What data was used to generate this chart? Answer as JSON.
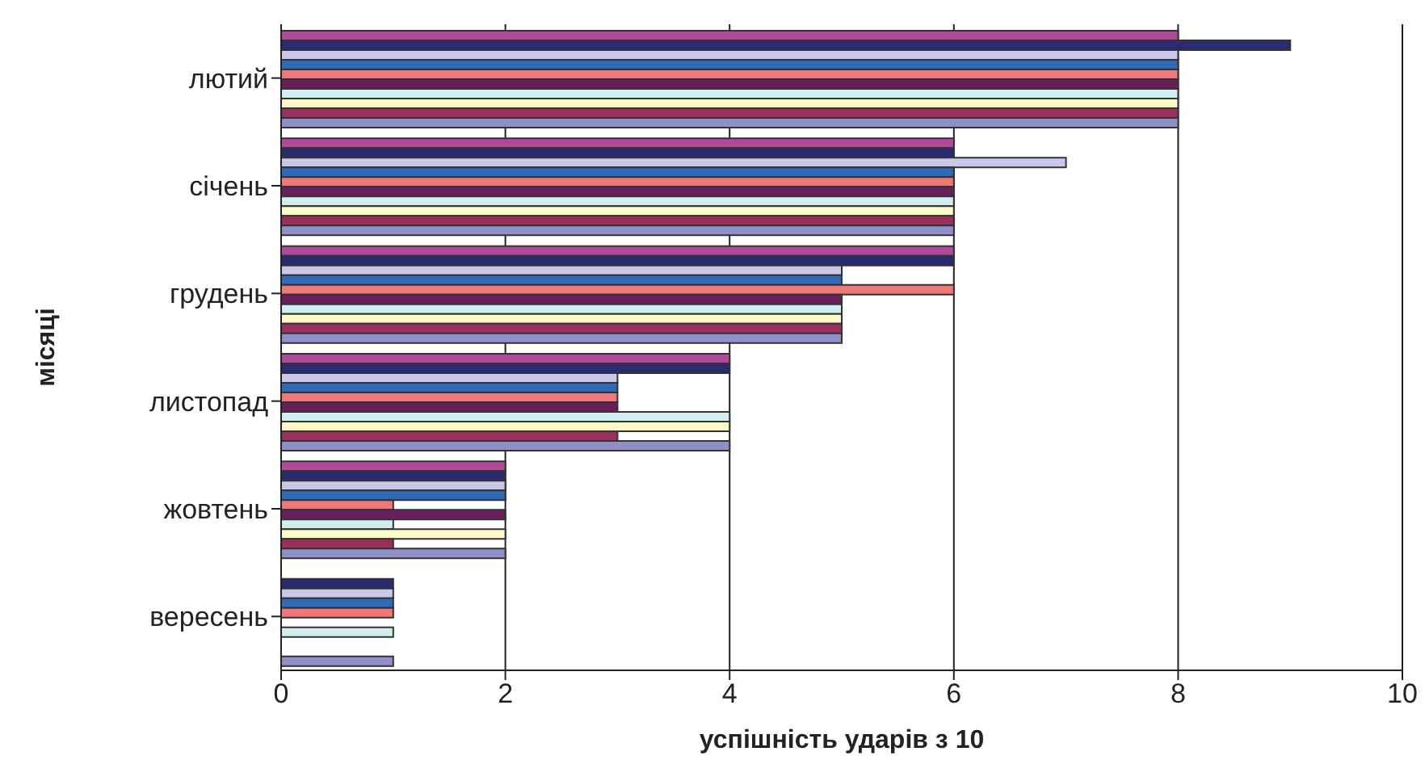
{
  "chart_data": {
    "type": "bar",
    "orientation": "horizontal",
    "xlabel": "успішність ударів з 10",
    "ylabel": "місяці",
    "categories": [
      "лютий",
      "січень",
      "грудень",
      "листопад",
      "жовтень",
      "вересень"
    ],
    "series": [
      {
        "color": "#b04a9a",
        "values": [
          8,
          6,
          6,
          4,
          2,
          0
        ]
      },
      {
        "color": "#2a2a70",
        "values": [
          9,
          6,
          6,
          4,
          2,
          1
        ]
      },
      {
        "color": "#c8c8e8",
        "values": [
          8,
          7,
          5,
          3,
          2,
          1
        ]
      },
      {
        "color": "#2e6ab8",
        "values": [
          8,
          6,
          5,
          3,
          2,
          1
        ]
      },
      {
        "color": "#f07878",
        "values": [
          8,
          6,
          6,
          3,
          1,
          1
        ]
      },
      {
        "color": "#6a1e5e",
        "values": [
          8,
          6,
          5,
          3,
          2,
          0
        ]
      },
      {
        "color": "#d0eef0",
        "values": [
          8,
          6,
          5,
          4,
          1,
          1
        ]
      },
      {
        "color": "#fff8c8",
        "values": [
          8,
          6,
          5,
          4,
          2,
          0
        ]
      },
      {
        "color": "#9a3060",
        "values": [
          8,
          6,
          5,
          3,
          1,
          0
        ]
      },
      {
        "color": "#9090c8",
        "values": [
          8,
          6,
          5,
          4,
          2,
          1
        ]
      }
    ],
    "xlim": [
      0,
      10
    ],
    "xticks": [
      0,
      2,
      4,
      6,
      8,
      10
    ],
    "grid": "x",
    "legend": false
  }
}
